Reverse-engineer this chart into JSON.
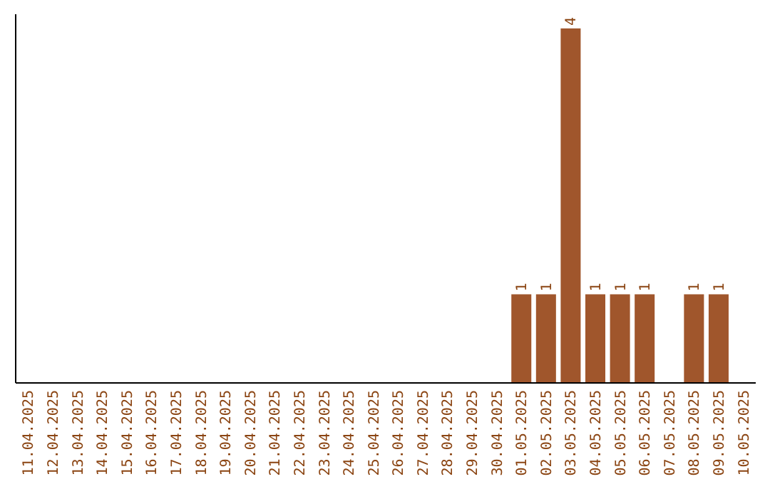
{
  "chart_data": {
    "type": "bar",
    "categories": [
      "11.04.2025",
      "12.04.2025",
      "13.04.2025",
      "14.04.2025",
      "15.04.2025",
      "16.04.2025",
      "17.04.2025",
      "18.04.2025",
      "19.04.2025",
      "20.04.2025",
      "21.04.2025",
      "22.04.2025",
      "23.04.2025",
      "24.04.2025",
      "25.04.2025",
      "26.04.2025",
      "27.04.2025",
      "28.04.2025",
      "29.04.2025",
      "30.04.2025",
      "01.05.2025",
      "02.05.2025",
      "03.05.2025",
      "04.05.2025",
      "05.05.2025",
      "06.05.2025",
      "07.05.2025",
      "08.05.2025",
      "09.05.2025",
      "10.05.2025"
    ],
    "values": [
      null,
      null,
      null,
      null,
      null,
      null,
      null,
      null,
      null,
      null,
      null,
      null,
      null,
      null,
      null,
      null,
      null,
      null,
      null,
      null,
      1,
      1,
      4,
      1,
      1,
      1,
      null,
      1,
      1,
      null
    ],
    "data_labels": true,
    "color": "#a0562c",
    "tick_labels": "x"
  }
}
